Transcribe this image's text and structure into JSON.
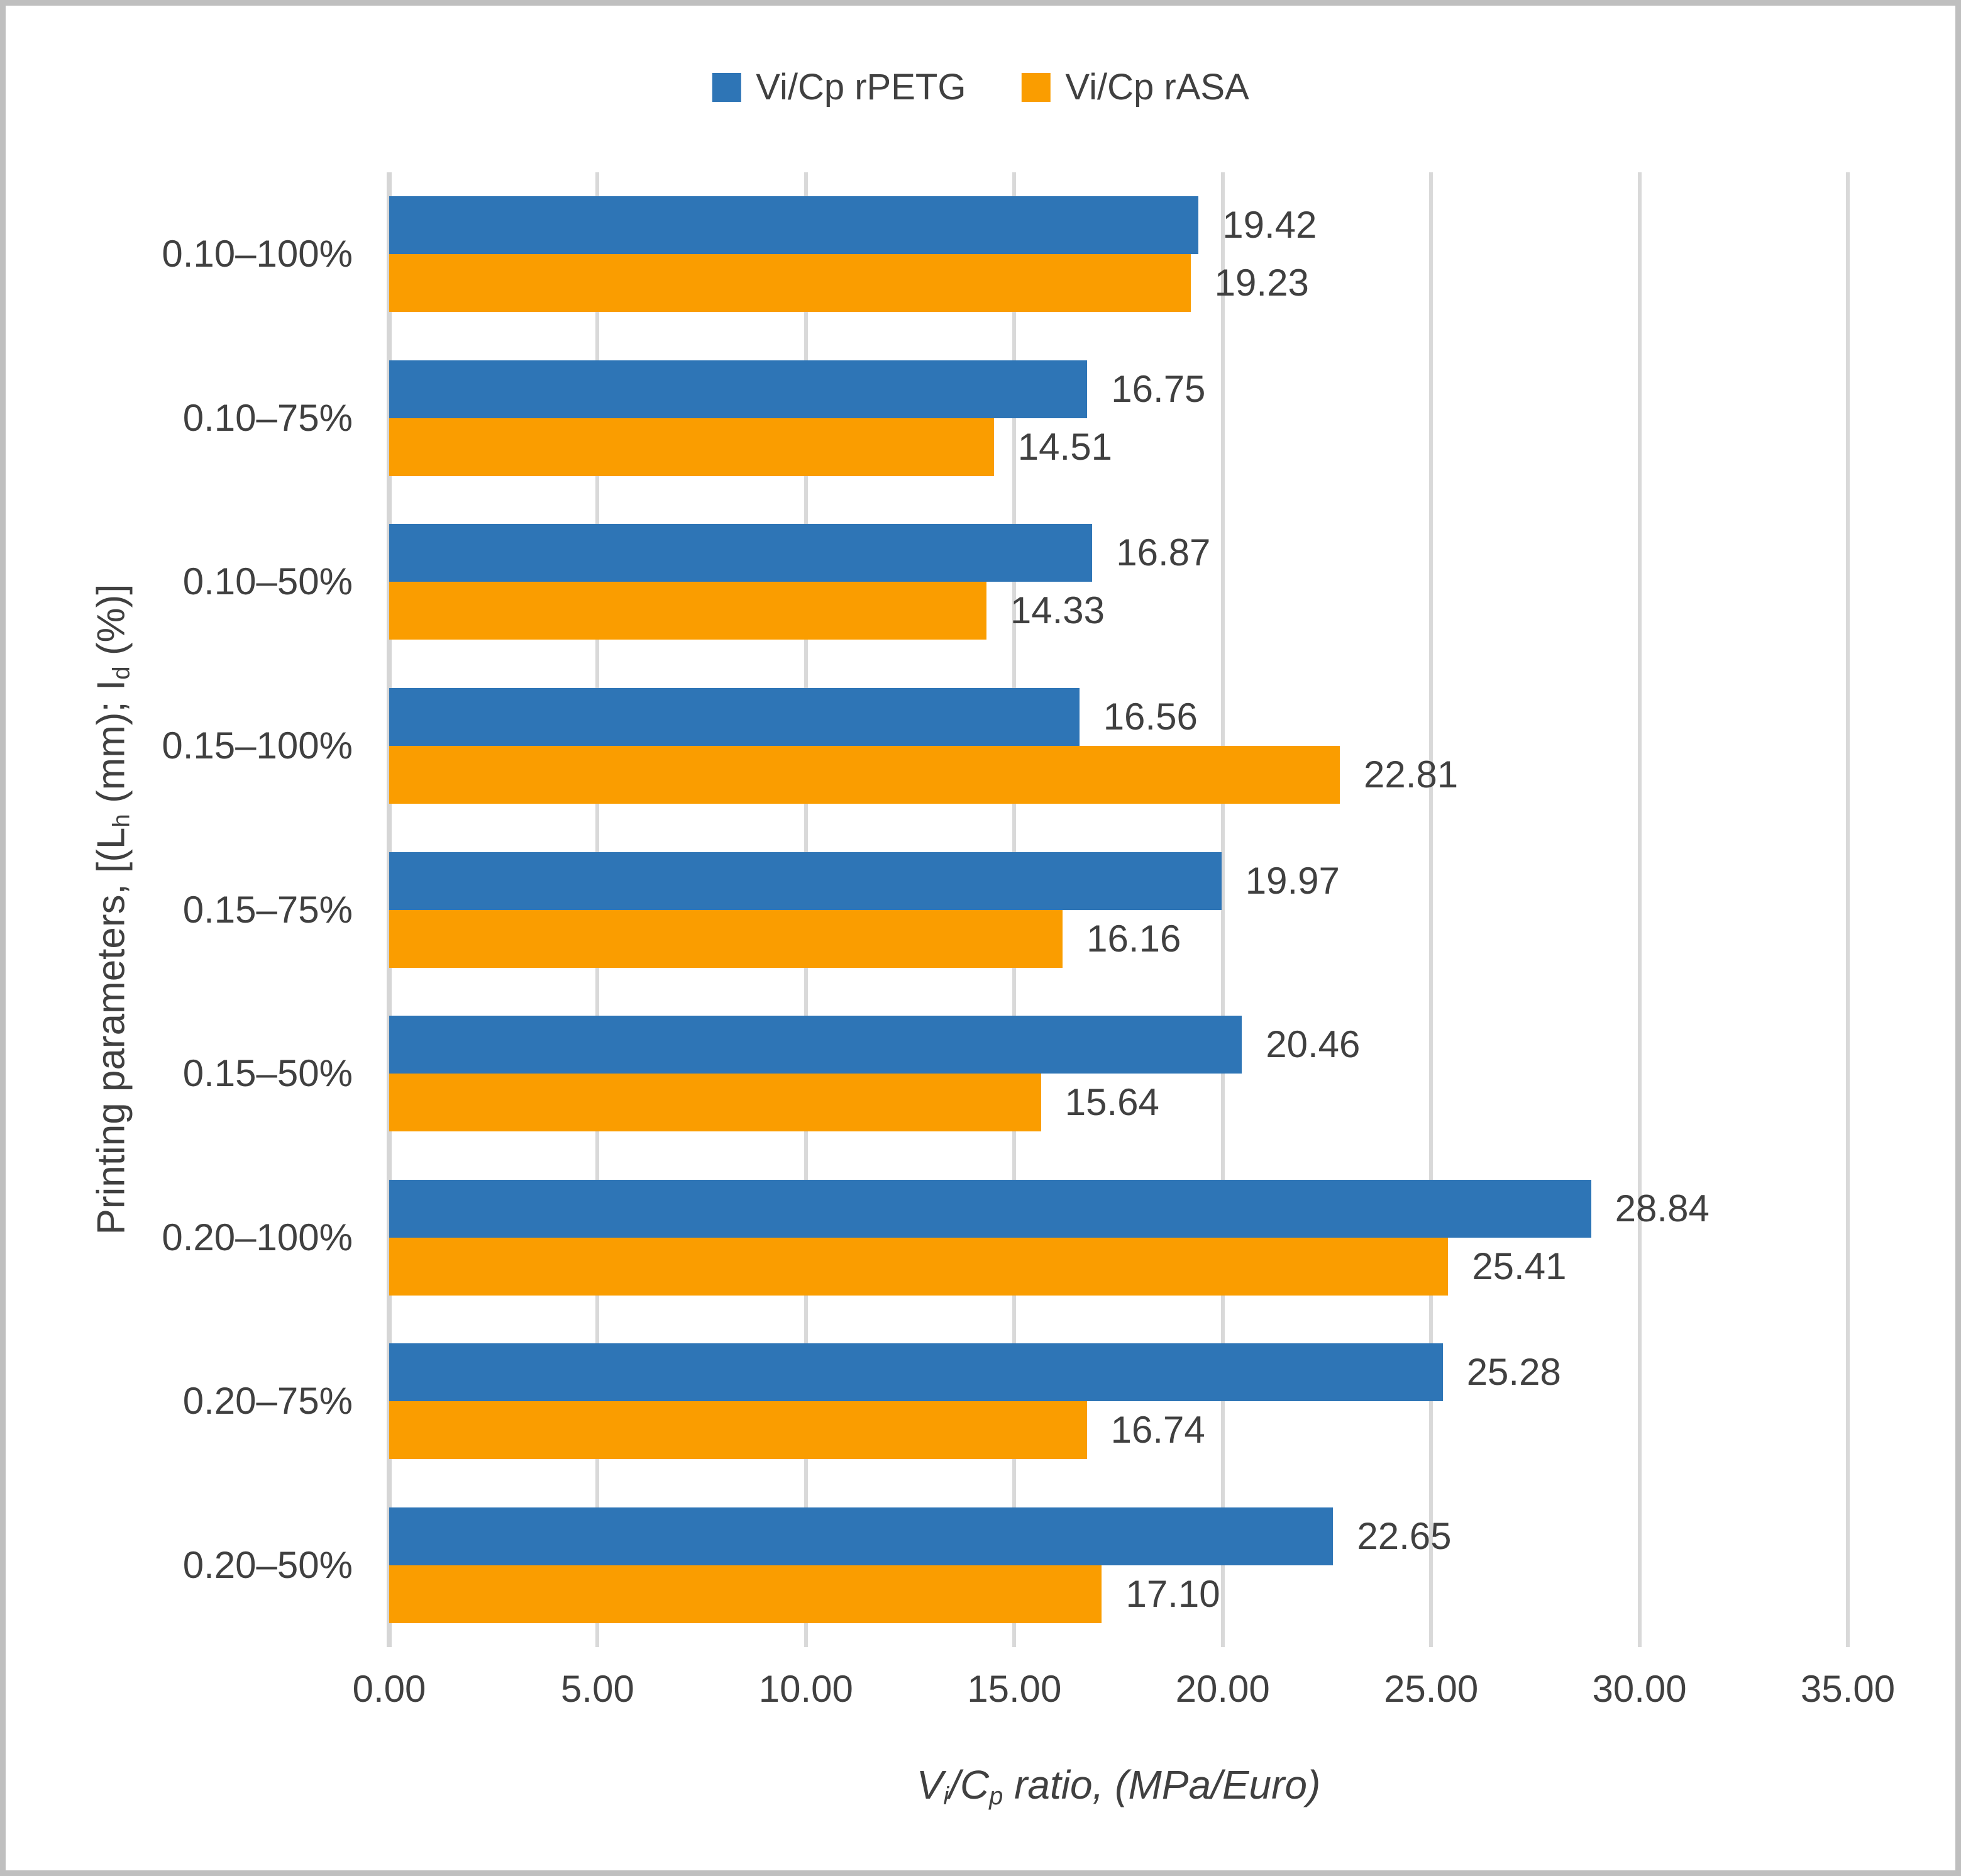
{
  "figure": {
    "background": "#FFFFFF",
    "border_color": "#BFBFBF",
    "text_color": "#404040"
  },
  "legend": {
    "position": "top-center",
    "items": [
      {
        "label": "Vi/Cp rPETG",
        "color": "#2E75B6"
      },
      {
        "label": "Vi/Cp rASA",
        "color": "#FA9D00"
      }
    ]
  },
  "chart_data": {
    "type": "bar",
    "orientation": "horizontal",
    "title": "",
    "categories": [
      "0.10–100%",
      "0.10–75%",
      "0.10–50%",
      "0.15–100%",
      "0.15–75%",
      "0.15–50%",
      "0.20–100%",
      "0.20–75%",
      "0.20–50%"
    ],
    "series": [
      {
        "name": "Vi/Cp rPETG",
        "color": "#2E75B6",
        "values": [
          19.42,
          16.75,
          16.87,
          16.56,
          19.97,
          20.46,
          28.84,
          25.28,
          22.65
        ]
      },
      {
        "name": "Vi/Cp rASA",
        "color": "#FA9D00",
        "values": [
          19.23,
          14.51,
          14.33,
          22.81,
          16.16,
          15.64,
          25.41,
          16.74,
          17.1
        ]
      }
    ],
    "xlabel_plain": "Vi/Cp ratio, (MPa/Euro)",
    "xlabel_segments": [
      {
        "t": "V"
      },
      {
        "t": "i",
        "sub": true
      },
      {
        "t": "/C"
      },
      {
        "t": "p",
        "sub": true
      },
      {
        "t": " ratio, (MPa/Euro)"
      }
    ],
    "ylabel_plain": "Printing parameters, [(Lh (mm); Id (%)]",
    "ylabel_segments": [
      {
        "t": "Printing parameters, [(L"
      },
      {
        "t": "h",
        "sub": true
      },
      {
        "t": " (mm); I"
      },
      {
        "t": "d",
        "sub": true
      },
      {
        "t": " (%)]"
      }
    ],
    "xlim": [
      0,
      35
    ],
    "x_ticks": [
      0,
      5,
      10,
      15,
      20,
      25,
      30,
      35
    ],
    "tick_decimals": 2,
    "data_label_decimals": 2,
    "grid": "vertical-only",
    "gridline_color": "#D9D9D9",
    "axis_line_color": "#D6D6D6",
    "legend_position": "top"
  }
}
